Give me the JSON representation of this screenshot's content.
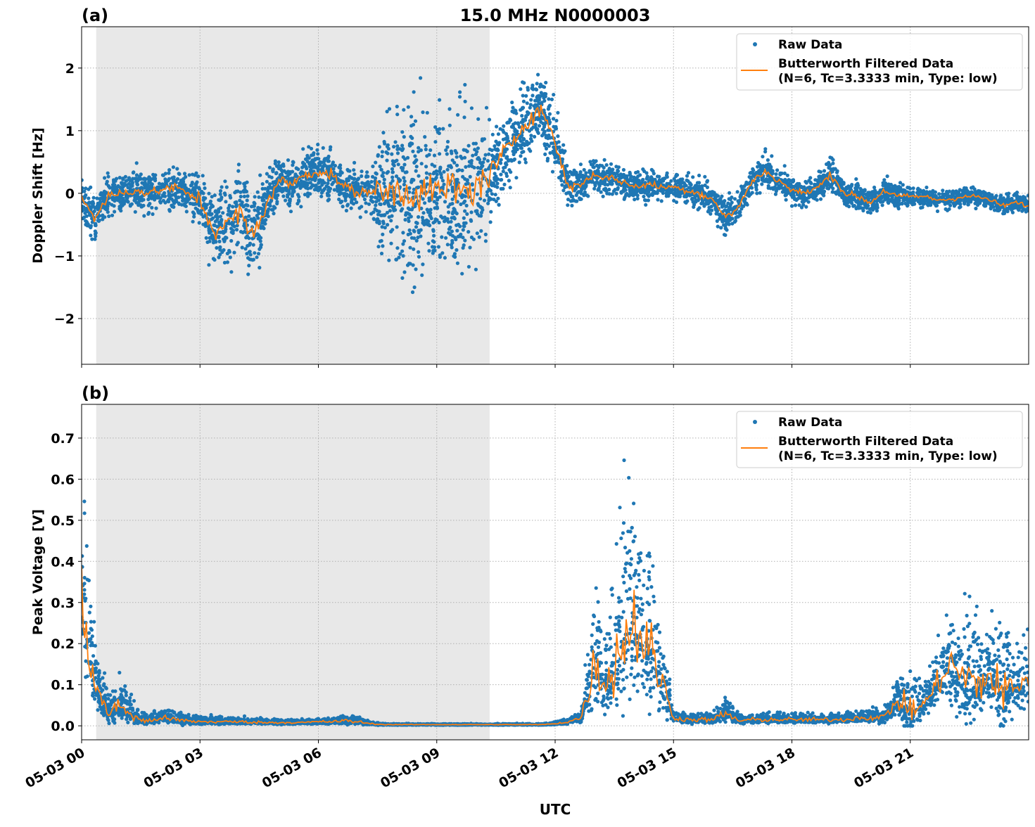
{
  "chart_data": [
    {
      "panel_label": "(a)",
      "title": "15.0 MHz N0000003",
      "type": "scatter",
      "ylabel": "Doppler Shift [Hz]",
      "xlabel": "",
      "xlim_hours": [
        0,
        24
      ],
      "ylim": [
        -2.73,
        2.66
      ],
      "yticks": [
        -2,
        -1,
        0,
        1,
        2
      ],
      "ytick_labels": [
        "−2",
        "−1",
        "0",
        "1",
        "2"
      ],
      "grid": true,
      "legend_placement": "top-right",
      "shaded_interval_hours": [
        0.37,
        10.34
      ],
      "shade_color": "#e8e8e8",
      "series": [
        {
          "name": "Raw Data",
          "kind": "scatter",
          "color": "#1f77b4",
          "x_hours_step": 0.3333,
          "spread": [
            0.3,
            0.35,
            0.3,
            0.3,
            0.3,
            0.3,
            0.3,
            0.3,
            0.3,
            0.4,
            0.6,
            0.6,
            0.6,
            0.65,
            0.5,
            0.35,
            0.35,
            0.35,
            0.35,
            0.35,
            0.35,
            0.3,
            0.35,
            1.1,
            1.2,
            1.2,
            1.2,
            1.2,
            1.2,
            1.2,
            1.2,
            0.8,
            0.6,
            0.6,
            0.55,
            0.5,
            0.5,
            0.35,
            0.25,
            0.25,
            0.25,
            0.25,
            0.2,
            0.25,
            0.2,
            0.2,
            0.2,
            0.25,
            0.25,
            0.25,
            0.25,
            0.2,
            0.25,
            0.2,
            0.2,
            0.2,
            0.2,
            0.25,
            0.2,
            0.2,
            0.2,
            0.2,
            0.2,
            0.15,
            0.15,
            0.15,
            0.15,
            0.15,
            0.15,
            0.15,
            0.15,
            0.15,
            0.15
          ]
        },
        {
          "name": "Butterworth Filtered Data\n(N=6, Tc=3.3333 min, Type: low)",
          "kind": "line",
          "color": "#ff7f0e",
          "x_hours_step": 0.3333,
          "values": [
            -0.05,
            -0.4,
            -0.05,
            0.0,
            0.05,
            0.0,
            0.05,
            0.1,
            0.0,
            -0.1,
            -0.6,
            -0.5,
            -0.3,
            -0.7,
            -0.2,
            0.2,
            0.15,
            0.3,
            0.35,
            0.3,
            0.1,
            0.0,
            0.05,
            0.0,
            0.05,
            0.0,
            0.05,
            0.0,
            0.1,
            0.0,
            0.1,
            0.3,
            0.6,
            0.9,
            1.2,
            1.35,
            0.8,
            0.1,
            0.15,
            0.3,
            0.25,
            0.2,
            0.1,
            0.15,
            0.1,
            0.1,
            0.05,
            0.0,
            -0.1,
            -0.4,
            -0.2,
            0.2,
            0.35,
            0.2,
            0.05,
            0.0,
            0.1,
            0.3,
            0.0,
            -0.05,
            -0.15,
            0.05,
            -0.05,
            -0.05,
            -0.05,
            -0.1,
            -0.1,
            -0.05,
            -0.05,
            -0.1,
            -0.2,
            -0.15,
            -0.2
          ]
        }
      ],
      "legend": [
        "Raw Data",
        "Butterworth Filtered Data",
        "(N=6, Tc=3.3333 min, Type: low)"
      ]
    },
    {
      "panel_label": "(b)",
      "type": "scatter",
      "ylabel": "Peak Voltage [V]",
      "xlabel": "UTC",
      "xlim_hours": [
        0,
        24
      ],
      "ylim": [
        -0.034,
        0.782
      ],
      "yticks": [
        0.0,
        0.1,
        0.2,
        0.3,
        0.4,
        0.5,
        0.6,
        0.7
      ],
      "ytick_labels": [
        "0.0",
        "0.1",
        "0.2",
        "0.3",
        "0.4",
        "0.5",
        "0.6",
        "0.7"
      ],
      "xticks_hours": [
        0,
        3,
        6,
        9,
        12,
        15,
        18,
        21
      ],
      "xtick_labels": [
        "05-03 00",
        "05-03 03",
        "05-03 06",
        "05-03 09",
        "05-03 12",
        "05-03 15",
        "05-03 18",
        "05-03 21"
      ],
      "grid": true,
      "legend_placement": "top-right",
      "shaded_interval_hours": [
        0.37,
        10.34
      ],
      "series": [
        {
          "name": "Raw Data",
          "kind": "scatter",
          "color": "#1f77b4",
          "x_hours_step": 0.3333,
          "spread": [
            0.3,
            0.12,
            0.04,
            0.07,
            0.03,
            0.02,
            0.02,
            0.02,
            0.015,
            0.012,
            0.012,
            0.01,
            0.01,
            0.01,
            0.008,
            0.008,
            0.008,
            0.008,
            0.008,
            0.01,
            0.015,
            0.012,
            0.005,
            0.002,
            0.002,
            0.002,
            0.002,
            0.002,
            0.002,
            0.002,
            0.002,
            0.002,
            0.002,
            0.002,
            0.002,
            0.002,
            0.004,
            0.01,
            0.02,
            0.18,
            0.12,
            0.3,
            0.3,
            0.25,
            0.15,
            0.02,
            0.015,
            0.015,
            0.02,
            0.04,
            0.015,
            0.015,
            0.015,
            0.015,
            0.015,
            0.015,
            0.015,
            0.015,
            0.015,
            0.02,
            0.02,
            0.03,
            0.05,
            0.12,
            0.05,
            0.08,
            0.15,
            0.2,
            0.15,
            0.12,
            0.18,
            0.12,
            0.15
          ]
        },
        {
          "name": "Butterworth Filtered Data\n(N=6, Tc=3.3333 min, Type: low)",
          "kind": "line",
          "color": "#ff7f0e",
          "x_hours_step": 0.3333,
          "values": [
            0.3,
            0.1,
            0.03,
            0.05,
            0.02,
            0.01,
            0.02,
            0.015,
            0.012,
            0.01,
            0.01,
            0.01,
            0.01,
            0.009,
            0.008,
            0.008,
            0.008,
            0.008,
            0.01,
            0.01,
            0.012,
            0.01,
            0.005,
            0.003,
            0.003,
            0.003,
            0.003,
            0.003,
            0.003,
            0.003,
            0.003,
            0.003,
            0.003,
            0.003,
            0.003,
            0.003,
            0.005,
            0.01,
            0.02,
            0.15,
            0.1,
            0.2,
            0.25,
            0.2,
            0.12,
            0.02,
            0.015,
            0.015,
            0.015,
            0.03,
            0.012,
            0.015,
            0.015,
            0.015,
            0.015,
            0.015,
            0.015,
            0.015,
            0.015,
            0.02,
            0.02,
            0.02,
            0.06,
            0.04,
            0.05,
            0.1,
            0.15,
            0.12,
            0.1,
            0.12,
            0.08,
            0.1,
            0.12
          ]
        }
      ],
      "legend": [
        "Raw Data",
        "Butterworth Filtered Data",
        "(N=6, Tc=3.3333 min, Type: low)"
      ]
    }
  ]
}
